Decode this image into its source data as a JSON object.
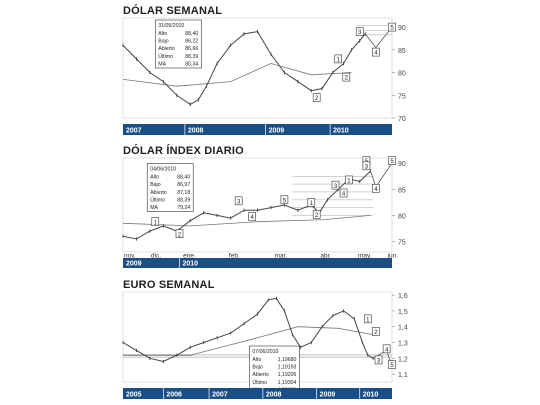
{
  "panels": [
    {
      "title": "DÓLAR SEMANAL"
    },
    {
      "title": "DÓLAR ÍNDEX DIARIO"
    },
    {
      "title": "EURO SEMANAL"
    }
  ],
  "colors": {
    "years_band": "#1c4e86",
    "band_text": "#ffffff",
    "price": "#444444",
    "grid": "#b9b9b9"
  },
  "chart_data": [
    {
      "type": "line",
      "title": "DÓLAR SEMANAL",
      "ylim": [
        70,
        92
      ],
      "y_ticks": [
        70,
        75,
        80,
        85,
        90
      ],
      "x_ticks": [
        "2007",
        "2008",
        "2009",
        "2010"
      ],
      "x_tick_pos": [
        0.0,
        0.23,
        0.53,
        0.77
      ],
      "series": [
        {
          "x": [
            0,
            0.05,
            0.1,
            0.15,
            0.2,
            0.25,
            0.28,
            0.31,
            0.35,
            0.4,
            0.45,
            0.5,
            0.55,
            0.6,
            0.65,
            0.7,
            0.74,
            0.78,
            0.82,
            0.85,
            0.88,
            0.9
          ],
          "values": [
            86,
            83,
            80,
            78,
            75,
            73,
            74,
            77,
            82,
            86,
            88.5,
            89,
            84,
            80,
            78,
            76,
            76.5,
            80,
            82,
            85,
            87,
            88.5
          ]
        }
      ],
      "averages": [
        {
          "x": [
            0,
            0.2,
            0.4,
            0.55,
            0.7,
            0.85
          ],
          "values": [
            78.5,
            77,
            78,
            82,
            79.5,
            80
          ]
        }
      ],
      "ohlc_box": {
        "date": "31/05/2010",
        "rows": [
          {
            "label": "Alto",
            "value": "88,40"
          },
          {
            "label": "Bajo",
            "value": "86,22"
          },
          {
            "label": "Abierto",
            "value": "86,66"
          },
          {
            "label": "Último",
            "value": "88,39"
          },
          {
            "label": "MA",
            "value": "80,34"
          }
        ]
      },
      "wave_labels": [
        {
          "label": "2",
          "x": 0.72,
          "y": 74.5
        },
        {
          "label": "1",
          "x": 0.8,
          "y": 83
        },
        {
          "label": "2",
          "x": 0.83,
          "y": 79
        },
        {
          "label": "3",
          "x": 0.88,
          "y": 89
        },
        {
          "label": "4",
          "x": 0.94,
          "y": 84.5
        },
        {
          "label": "5",
          "x": 1.0,
          "y": 90
        }
      ],
      "h_levels": [
        88.3,
        89.3,
        90.3
      ],
      "h_level_span": [
        0.87,
        1.0
      ],
      "projection": {
        "x": [
          0.9,
          0.94,
          1.0
        ],
        "values": [
          88.5,
          85.5,
          90.0
        ]
      }
    },
    {
      "type": "line",
      "title": "DÓLAR ÍNDEX DIARIO",
      "ylim": [
        73,
        91
      ],
      "y_ticks": [
        75,
        80,
        85,
        90
      ],
      "x_ticks": [
        "nov.",
        "dic.",
        "ene.",
        "feb.",
        "mar.",
        "abr.",
        "may.",
        "jun."
      ],
      "x_tick_pos": [
        0.0,
        0.1,
        0.22,
        0.39,
        0.56,
        0.73,
        0.87,
        0.98
      ],
      "year_labels": [
        "2009",
        "2010"
      ],
      "year_pos": [
        0.0,
        0.21
      ],
      "series": [
        {
          "x": [
            0,
            0.05,
            0.1,
            0.15,
            0.2,
            0.25,
            0.3,
            0.35,
            0.4,
            0.45,
            0.5,
            0.55,
            0.6,
            0.65,
            0.7,
            0.73,
            0.76,
            0.8,
            0.84,
            0.88,
            0.92
          ],
          "values": [
            76,
            75.5,
            77,
            78,
            77,
            79,
            80.5,
            80,
            79.5,
            81,
            81,
            81.5,
            82,
            81,
            82,
            80.5,
            83,
            85,
            87,
            86.5,
            88.5
          ]
        }
      ],
      "averages": [
        {
          "x": [
            0,
            0.25,
            0.5,
            0.75,
            0.92
          ],
          "values": [
            78.5,
            78,
            78.8,
            79.2,
            80
          ]
        }
      ],
      "ohlc_box": {
        "date": "04/06/2010",
        "rows": [
          {
            "label": "Alto",
            "value": "88,40"
          },
          {
            "label": "Bajo",
            "value": "86,97"
          },
          {
            "label": "Abierto",
            "value": "87,18"
          },
          {
            "label": "Último",
            "value": "88,39"
          },
          {
            "label": "MA",
            "value": "79,24"
          }
        ]
      },
      "wave_labels": [
        {
          "label": "1",
          "x": 0.12,
          "y": 78.8
        },
        {
          "label": "2",
          "x": 0.21,
          "y": 76.5
        },
        {
          "label": "3",
          "x": 0.43,
          "y": 82.8
        },
        {
          "label": "4",
          "x": 0.48,
          "y": 79.8
        },
        {
          "label": "5",
          "x": 0.6,
          "y": 83
        },
        {
          "label": "1",
          "x": 0.7,
          "y": 82.5
        },
        {
          "label": "2",
          "x": 0.72,
          "y": 80.2
        },
        {
          "label": "3",
          "x": 0.79,
          "y": 85.8
        },
        {
          "label": "4",
          "x": 0.82,
          "y": 84.3
        },
        {
          "label": "1",
          "x": 0.84,
          "y": 86.8
        },
        {
          "label": "5",
          "x": 0.905,
          "y": 90.5
        },
        {
          "label": "3",
          "x": 0.905,
          "y": 89.5
        },
        {
          "label": "4",
          "x": 0.94,
          "y": 85.2
        },
        {
          "label": "5",
          "x": 1.0,
          "y": 90.5
        }
      ],
      "h_levels": [
        87.5,
        86,
        84.5,
        83,
        81.5,
        80
      ],
      "h_level_span": [
        0.63,
        0.93
      ],
      "projection": {
        "x": [
          0.92,
          0.94,
          1.0
        ],
        "values": [
          88.5,
          85.5,
          90.0
        ]
      }
    },
    {
      "type": "line",
      "title": "EURO SEMANAL",
      "ylim": [
        1.05,
        1.62
      ],
      "y_ticks": [
        1.1,
        1.2,
        1.3,
        1.4,
        1.5,
        1.6
      ],
      "x_ticks": [
        "2005",
        "2006",
        "2007",
        "2008",
        "2009",
        "2010"
      ],
      "x_tick_pos": [
        0.0,
        0.15,
        0.32,
        0.52,
        0.72,
        0.88
      ],
      "series": [
        {
          "x": [
            0,
            0.05,
            0.1,
            0.15,
            0.2,
            0.25,
            0.3,
            0.35,
            0.4,
            0.45,
            0.5,
            0.54,
            0.57,
            0.6,
            0.63,
            0.66,
            0.7,
            0.74,
            0.78,
            0.82,
            0.86,
            0.89,
            0.91,
            0.93
          ],
          "values": [
            1.3,
            1.25,
            1.2,
            1.18,
            1.22,
            1.27,
            1.3,
            1.33,
            1.36,
            1.42,
            1.48,
            1.57,
            1.58,
            1.5,
            1.35,
            1.27,
            1.3,
            1.4,
            1.47,
            1.5,
            1.45,
            1.3,
            1.22,
            1.2
          ]
        }
      ],
      "averages": [
        {
          "x": [
            0,
            0.25,
            0.5,
            0.65,
            0.8,
            0.93
          ],
          "values": [
            1.22,
            1.22,
            1.33,
            1.4,
            1.39,
            1.35
          ]
        }
      ],
      "ohlc_box": {
        "date": "07/06/2010",
        "rows": [
          {
            "label": "Alto",
            "value": "1,19680"
          },
          {
            "label": "Bajo",
            "value": "1,19193"
          },
          {
            "label": "Abierto",
            "value": "1,19206"
          },
          {
            "label": "Último",
            "value": "1,19304"
          },
          {
            "label": "MA",
            "value": "1,39030"
          }
        ]
      },
      "wave_labels": [
        {
          "label": "1",
          "x": 0.91,
          "y": 1.45
        },
        {
          "label": "2",
          "x": 0.94,
          "y": 1.37
        },
        {
          "label": "3",
          "x": 0.95,
          "y": 1.19
        },
        {
          "label": "4",
          "x": 0.98,
          "y": 1.26
        },
        {
          "label": "5",
          "x": 1.0,
          "y": 1.16
        }
      ],
      "h_levels": [
        1.205,
        1.215,
        1.225
      ],
      "h_level_span": [
        0.0,
        1.0
      ],
      "projection": {
        "x": [
          0.93,
          0.98,
          1.0
        ],
        "values": [
          1.2,
          1.25,
          1.15
        ]
      }
    }
  ]
}
